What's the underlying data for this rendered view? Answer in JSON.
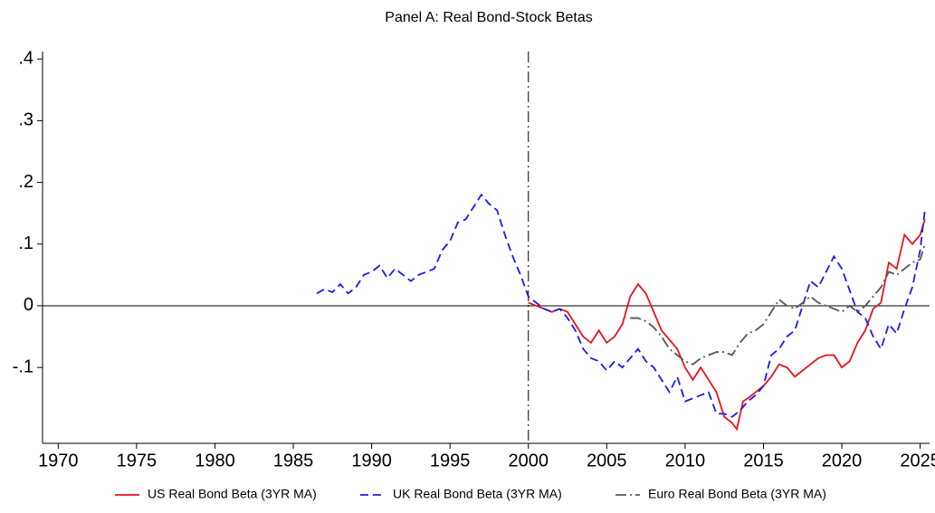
{
  "chart_data": {
    "type": "line",
    "title": "Panel A: Real Bond-Stock Betas",
    "xlim": [
      1969,
      2025.6
    ],
    "xticks": [
      1970,
      1975,
      1980,
      1985,
      1990,
      1995,
      2000,
      2005,
      2010,
      2015,
      2020,
      2025
    ],
    "ylim": [
      -0.223,
      0.412
    ],
    "yticks": [
      {
        "value": -0.1,
        "label": "-.1"
      },
      0,
      {
        "value": 0.1,
        "label": ".1"
      },
      {
        "value": 0.2,
        "label": ".2"
      },
      {
        "value": 0.3,
        "label": ".3"
      },
      {
        "value": 0.4,
        "label": ".4"
      }
    ],
    "hline": 0,
    "vline": 2000,
    "legend": "bottom",
    "series": [
      {
        "name": "US Real Bond Beta (3YR MA)",
        "color": "#e8141b",
        "style": "solid",
        "x": [
          2000,
          2000.5,
          2001,
          2001.5,
          2002,
          2002.5,
          2003,
          2003.5,
          2004,
          2004.5,
          2005,
          2005.5,
          2006,
          2006.5,
          2007,
          2007.5,
          2008,
          2008.5,
          2009,
          2009.5,
          2010,
          2010.5,
          2011,
          2011.5,
          2012,
          2012.5,
          2013,
          2013.3,
          2013.7,
          2014,
          2014.5,
          2015,
          2015.5,
          2016,
          2016.5,
          2017,
          2017.5,
          2018,
          2018.5,
          2019,
          2019.5,
          2020,
          2020.5,
          2021,
          2021.5,
          2022,
          2022.5,
          2023,
          2023.5,
          2024,
          2024.5,
          2025,
          2025.3
        ],
        "values": [
          0.005,
          0.0,
          -0.005,
          -0.01,
          -0.005,
          -0.01,
          -0.03,
          -0.05,
          -0.06,
          -0.04,
          -0.06,
          -0.05,
          -0.03,
          0.015,
          0.035,
          0.02,
          -0.01,
          -0.04,
          -0.055,
          -0.07,
          -0.1,
          -0.12,
          -0.1,
          -0.12,
          -0.14,
          -0.18,
          -0.19,
          -0.2,
          -0.155,
          -0.15,
          -0.14,
          -0.13,
          -0.115,
          -0.095,
          -0.1,
          -0.115,
          -0.105,
          -0.095,
          -0.085,
          -0.08,
          -0.08,
          -0.1,
          -0.09,
          -0.06,
          -0.04,
          -0.005,
          0.005,
          0.07,
          0.06,
          0.115,
          0.1,
          0.115,
          0.14
        ]
      },
      {
        "name": "UK Real Bond Beta (3YR MA)",
        "color": "#1a1aef",
        "style": "dash",
        "x": [
          1986.5,
          1987,
          1987.5,
          1988,
          1988.5,
          1989,
          1989.5,
          1990,
          1990.5,
          1991,
          1991.5,
          1992,
          1992.5,
          1993,
          1993.5,
          1994,
          1994.5,
          1995,
          1995.5,
          1996,
          1996.5,
          1997,
          1997.5,
          1998,
          1998.5,
          1999,
          1999.5,
          2000,
          2000.5,
          2001,
          2001.5,
          2002,
          2002.5,
          2003,
          2003.5,
          2004,
          2004.5,
          2005,
          2005.5,
          2006,
          2006.5,
          2007,
          2007.5,
          2008,
          2008.5,
          2009,
          2009.5,
          2010,
          2010.5,
          2011,
          2011.5,
          2012,
          2012.5,
          2013,
          2013.5,
          2014,
          2014.5,
          2015,
          2015.5,
          2016,
          2016.5,
          2017,
          2017.5,
          2018,
          2018.5,
          2019,
          2019.5,
          2020,
          2020.5,
          2021,
          2021.5,
          2022,
          2022.5,
          2023,
          2023.5,
          2024,
          2024.5,
          2025,
          2025.3
        ],
        "values": [
          0.02,
          0.027,
          0.022,
          0.035,
          0.02,
          0.03,
          0.05,
          0.055,
          0.065,
          0.045,
          0.06,
          0.05,
          0.04,
          0.05,
          0.055,
          0.06,
          0.09,
          0.105,
          0.135,
          0.14,
          0.16,
          0.18,
          0.165,
          0.155,
          0.115,
          0.08,
          0.05,
          0.015,
          0.005,
          -0.005,
          -0.01,
          -0.005,
          -0.02,
          -0.04,
          -0.07,
          -0.085,
          -0.09,
          -0.105,
          -0.09,
          -0.1,
          -0.085,
          -0.07,
          -0.09,
          -0.1,
          -0.12,
          -0.14,
          -0.115,
          -0.155,
          -0.15,
          -0.145,
          -0.14,
          -0.175,
          -0.175,
          -0.18,
          -0.17,
          -0.155,
          -0.145,
          -0.13,
          -0.08,
          -0.07,
          -0.05,
          -0.04,
          0.0,
          0.04,
          0.03,
          0.055,
          0.08,
          0.06,
          0.025,
          -0.01,
          -0.02,
          -0.05,
          -0.07,
          -0.03,
          -0.045,
          -0.005,
          0.03,
          0.09,
          0.155
        ]
      },
      {
        "name": "Euro Real Bond Beta (3YR MA)",
        "color": "#555555",
        "style": "dashdot",
        "x": [
          2006.5,
          2007,
          2007.5,
          2008,
          2008.5,
          2009,
          2009.5,
          2010,
          2010.5,
          2011,
          2011.5,
          2012,
          2012.5,
          2013,
          2013.5,
          2014,
          2014.5,
          2015,
          2015.5,
          2016,
          2016.5,
          2017,
          2017.5,
          2018,
          2018.5,
          2019,
          2019.5,
          2020,
          2020.5,
          2021,
          2021.5,
          2022,
          2022.5,
          2023,
          2023.5,
          2024,
          2024.5,
          2025,
          2025.3
        ],
        "values": [
          -0.02,
          -0.02,
          -0.025,
          -0.035,
          -0.05,
          -0.07,
          -0.08,
          -0.09,
          -0.095,
          -0.085,
          -0.08,
          -0.075,
          -0.075,
          -0.08,
          -0.06,
          -0.045,
          -0.04,
          -0.03,
          -0.01,
          0.01,
          0.0,
          -0.005,
          0.005,
          0.015,
          0.005,
          0.0,
          -0.005,
          -0.01,
          0.0,
          -0.01,
          0.0,
          0.015,
          0.03,
          0.055,
          0.05,
          0.06,
          0.07,
          0.075,
          0.1
        ]
      }
    ]
  }
}
